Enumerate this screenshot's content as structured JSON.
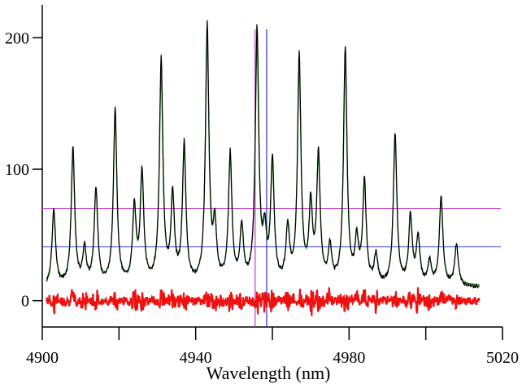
{
  "chart_data": {
    "type": "line",
    "title": "",
    "xlabel": "Wavelength (nm)",
    "ylabel": "",
    "xlim": [
      4900,
      5020
    ],
    "ylim": [
      -20,
      225
    ],
    "x_ticks": [
      4900,
      4940,
      4980,
      5020
    ],
    "y_ticks": [
      0,
      100,
      200
    ],
    "grid": false,
    "legend": "none",
    "peaks": [
      {
        "x": 4903,
        "y": 68
      },
      {
        "x": 4908,
        "y": 114
      },
      {
        "x": 4911,
        "y": 37
      },
      {
        "x": 4914,
        "y": 84
      },
      {
        "x": 4919,
        "y": 145
      },
      {
        "x": 4924,
        "y": 68
      },
      {
        "x": 4926,
        "y": 95
      },
      {
        "x": 4931,
        "y": 180
      },
      {
        "x": 4934,
        "y": 76
      },
      {
        "x": 4937,
        "y": 116
      },
      {
        "x": 4943,
        "y": 206
      },
      {
        "x": 4945,
        "y": 52
      },
      {
        "x": 4949,
        "y": 109
      },
      {
        "x": 4952,
        "y": 52
      },
      {
        "x": 4956,
        "y": 203
      },
      {
        "x": 4958,
        "y": 45
      },
      {
        "x": 4960,
        "y": 103
      },
      {
        "x": 4964,
        "y": 52
      },
      {
        "x": 4967,
        "y": 183
      },
      {
        "x": 4970,
        "y": 68
      },
      {
        "x": 4972,
        "y": 107
      },
      {
        "x": 4975,
        "y": 37
      },
      {
        "x": 4979,
        "y": 190
      },
      {
        "x": 4982,
        "y": 42
      },
      {
        "x": 4984,
        "y": 88
      },
      {
        "x": 4987,
        "y": 32
      },
      {
        "x": 4992,
        "y": 126
      },
      {
        "x": 4996,
        "y": 62
      },
      {
        "x": 4998,
        "y": 47
      },
      {
        "x": 5001,
        "y": 28
      },
      {
        "x": 5004,
        "y": 78
      },
      {
        "x": 5008,
        "y": 42
      }
    ],
    "baseline": 10,
    "x_start": 4901,
    "x_end": 5014,
    "residual_level": 0,
    "horizontal_lines": [
      {
        "y": 70,
        "color": "#cc33cc"
      },
      {
        "y": 41,
        "color": "#3333cc"
      }
    ],
    "vertical_lines": [
      {
        "x": 4955.5,
        "color": "#cc33cc"
      },
      {
        "x": 4958.5,
        "color": "#3333cc"
      }
    ],
    "series": [
      {
        "key": "observed",
        "color": "#000000"
      },
      {
        "key": "fit",
        "color": "#22aa22"
      },
      {
        "key": "residual",
        "color": "#ee1111"
      }
    ]
  }
}
